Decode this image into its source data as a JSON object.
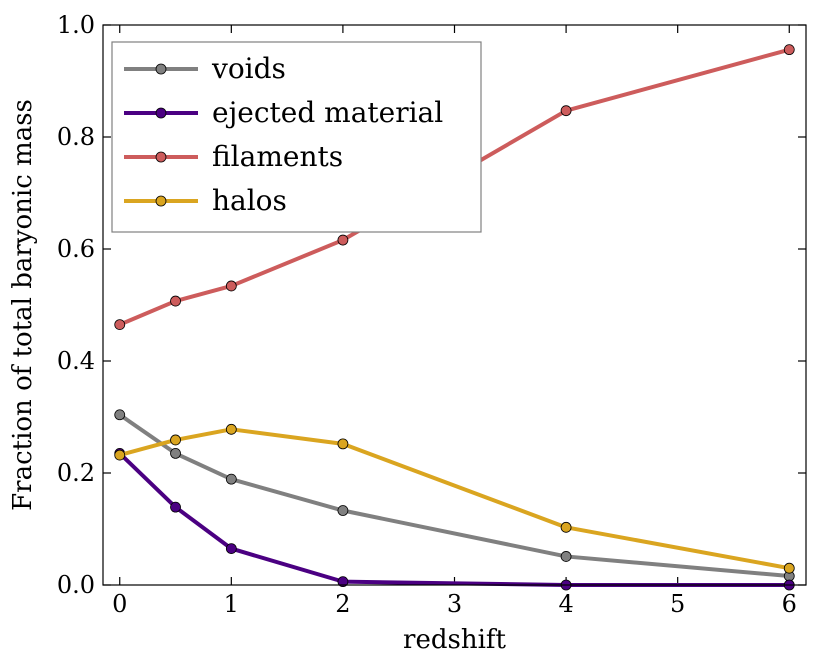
{
  "chart_data": {
    "type": "line",
    "title": "",
    "xlabel": "redshift",
    "ylabel": "Fraction of total baryonic mass",
    "xlim": [
      -0.15,
      6.15
    ],
    "ylim": [
      0.0,
      1.0
    ],
    "xticks": [
      0,
      1,
      2,
      3,
      4,
      5,
      6
    ],
    "xtick_labels": [
      "0",
      "1",
      "2",
      "3",
      "4",
      "5",
      "6"
    ],
    "yticks": [
      0.0,
      0.2,
      0.4,
      0.6,
      0.8,
      1.0
    ],
    "ytick_labels": [
      "0.0",
      "0.2",
      "0.4",
      "0.6",
      "0.8",
      "1.0"
    ],
    "grid": false,
    "legend_position": "top-left",
    "x": [
      0,
      0.5,
      1,
      2,
      4,
      6
    ],
    "series": [
      {
        "name": "voids",
        "color": "#808080",
        "values": [
          0.304,
          0.235,
          0.189,
          0.133,
          0.051,
          0.016
        ]
      },
      {
        "name": "ejected material",
        "color": "#4b0082",
        "values": [
          0.235,
          0.139,
          0.065,
          0.006,
          0.0,
          0.0
        ]
      },
      {
        "name": "filaments",
        "color": "#cd5c5c",
        "values": [
          0.465,
          0.507,
          0.534,
          0.616,
          0.847,
          0.956
        ]
      },
      {
        "name": "halos",
        "color": "#daa520",
        "values": [
          0.232,
          0.259,
          0.278,
          0.252,
          0.103,
          0.03
        ]
      }
    ]
  }
}
